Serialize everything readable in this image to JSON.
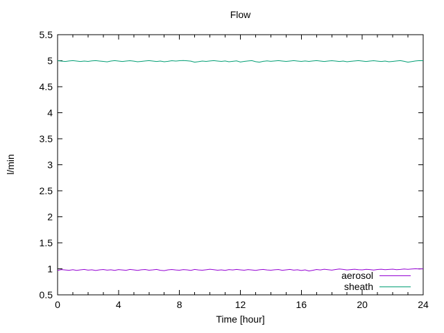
{
  "chart_data": {
    "type": "line",
    "title": "Flow",
    "xlabel": "Time [hour]",
    "ylabel": "l/min",
    "xlim": [
      0,
      24
    ],
    "ylim": [
      0.5,
      5.5
    ],
    "x_ticks": [
      0,
      4,
      8,
      12,
      16,
      20,
      24
    ],
    "x_tick_labels": [
      "0",
      "4",
      "8",
      "12",
      "16",
      "20",
      "24"
    ],
    "x_minor_tick_step": 1,
    "y_ticks": [
      0.5,
      1,
      1.5,
      2,
      2.5,
      3,
      3.5,
      4,
      4.5,
      5,
      5.5
    ],
    "y_tick_labels": [
      "0.5",
      "1",
      "1.5",
      "2",
      "2.5",
      "3",
      "3.5",
      "4",
      "4.5",
      "5",
      "5.5"
    ],
    "grid": false,
    "legend_position": "inside-bottom-right",
    "background": "#ffffff",
    "axis_color": "#000000",
    "x_start": 0,
    "x_step": 0.25,
    "series": [
      {
        "name": "aerosol",
        "color": "#9400d3",
        "values": [
          0.97,
          0.985,
          0.978,
          0.972,
          0.983,
          0.97,
          0.98,
          0.988,
          0.975,
          0.982,
          0.968,
          0.98,
          0.987,
          0.975,
          0.982,
          0.97,
          0.985,
          0.978,
          0.972,
          0.988,
          0.98,
          0.97,
          0.982,
          0.986,
          0.974,
          0.98,
          0.988,
          0.972,
          0.965,
          0.98,
          0.986,
          0.978,
          0.973,
          0.985,
          0.98,
          0.97,
          0.988,
          0.978,
          0.973,
          0.982,
          0.992,
          0.983,
          0.973,
          0.98,
          0.97,
          0.985,
          0.978,
          0.988,
          0.98,
          0.973,
          0.985,
          0.978,
          0.97,
          0.982,
          0.988,
          0.978,
          0.973,
          0.982,
          0.986,
          0.972,
          0.98,
          0.988,
          0.975,
          0.982,
          0.968,
          0.98,
          0.958,
          0.972,
          0.986,
          0.978,
          0.992,
          0.983,
          0.975,
          0.987,
          0.997,
          0.988,
          0.978,
          0.985,
          0.992,
          0.983,
          0.98,
          0.99,
          0.985,
          0.977,
          0.986,
          0.992,
          0.984,
          0.989,
          0.994,
          0.984,
          0.989,
          0.996,
          0.99,
          0.996,
          1.002,
          0.996,
          1.0
        ]
      },
      {
        "name": "sheath",
        "color": "#009e73",
        "values": [
          5.0,
          4.993,
          4.985,
          4.995,
          5.001,
          4.993,
          4.985,
          4.994,
          4.987,
          4.996,
          5.001,
          4.993,
          4.986,
          4.978,
          4.994,
          5.001,
          4.993,
          4.985,
          4.994,
          5.0,
          4.992,
          4.98,
          4.987,
          4.995,
          5.001,
          4.993,
          4.985,
          4.994,
          4.98,
          4.988,
          5.0,
          4.993,
          5.0,
          5.004,
          4.999,
          4.992,
          4.972,
          4.982,
          4.994,
          4.987,
          4.995,
          5.001,
          4.993,
          4.986,
          4.995,
          4.98,
          4.988,
          4.996,
          4.975,
          4.987,
          4.995,
          5.001,
          4.982,
          4.972,
          4.988,
          4.996,
          4.988,
          4.995,
          5.001,
          4.993,
          4.986,
          4.994,
          5.001,
          4.993,
          4.986,
          4.995,
          4.987,
          4.995,
          5.001,
          4.993,
          4.985,
          4.994,
          5.0,
          4.993,
          4.985,
          4.994,
          4.98,
          4.988,
          4.995,
          5.001,
          4.993,
          4.985,
          4.994,
          5.0,
          4.992,
          4.985,
          4.994,
          4.98,
          4.987,
          4.995,
          5.001,
          4.988,
          4.972,
          4.983,
          4.995,
          5.001,
          5.0
        ]
      }
    ]
  }
}
